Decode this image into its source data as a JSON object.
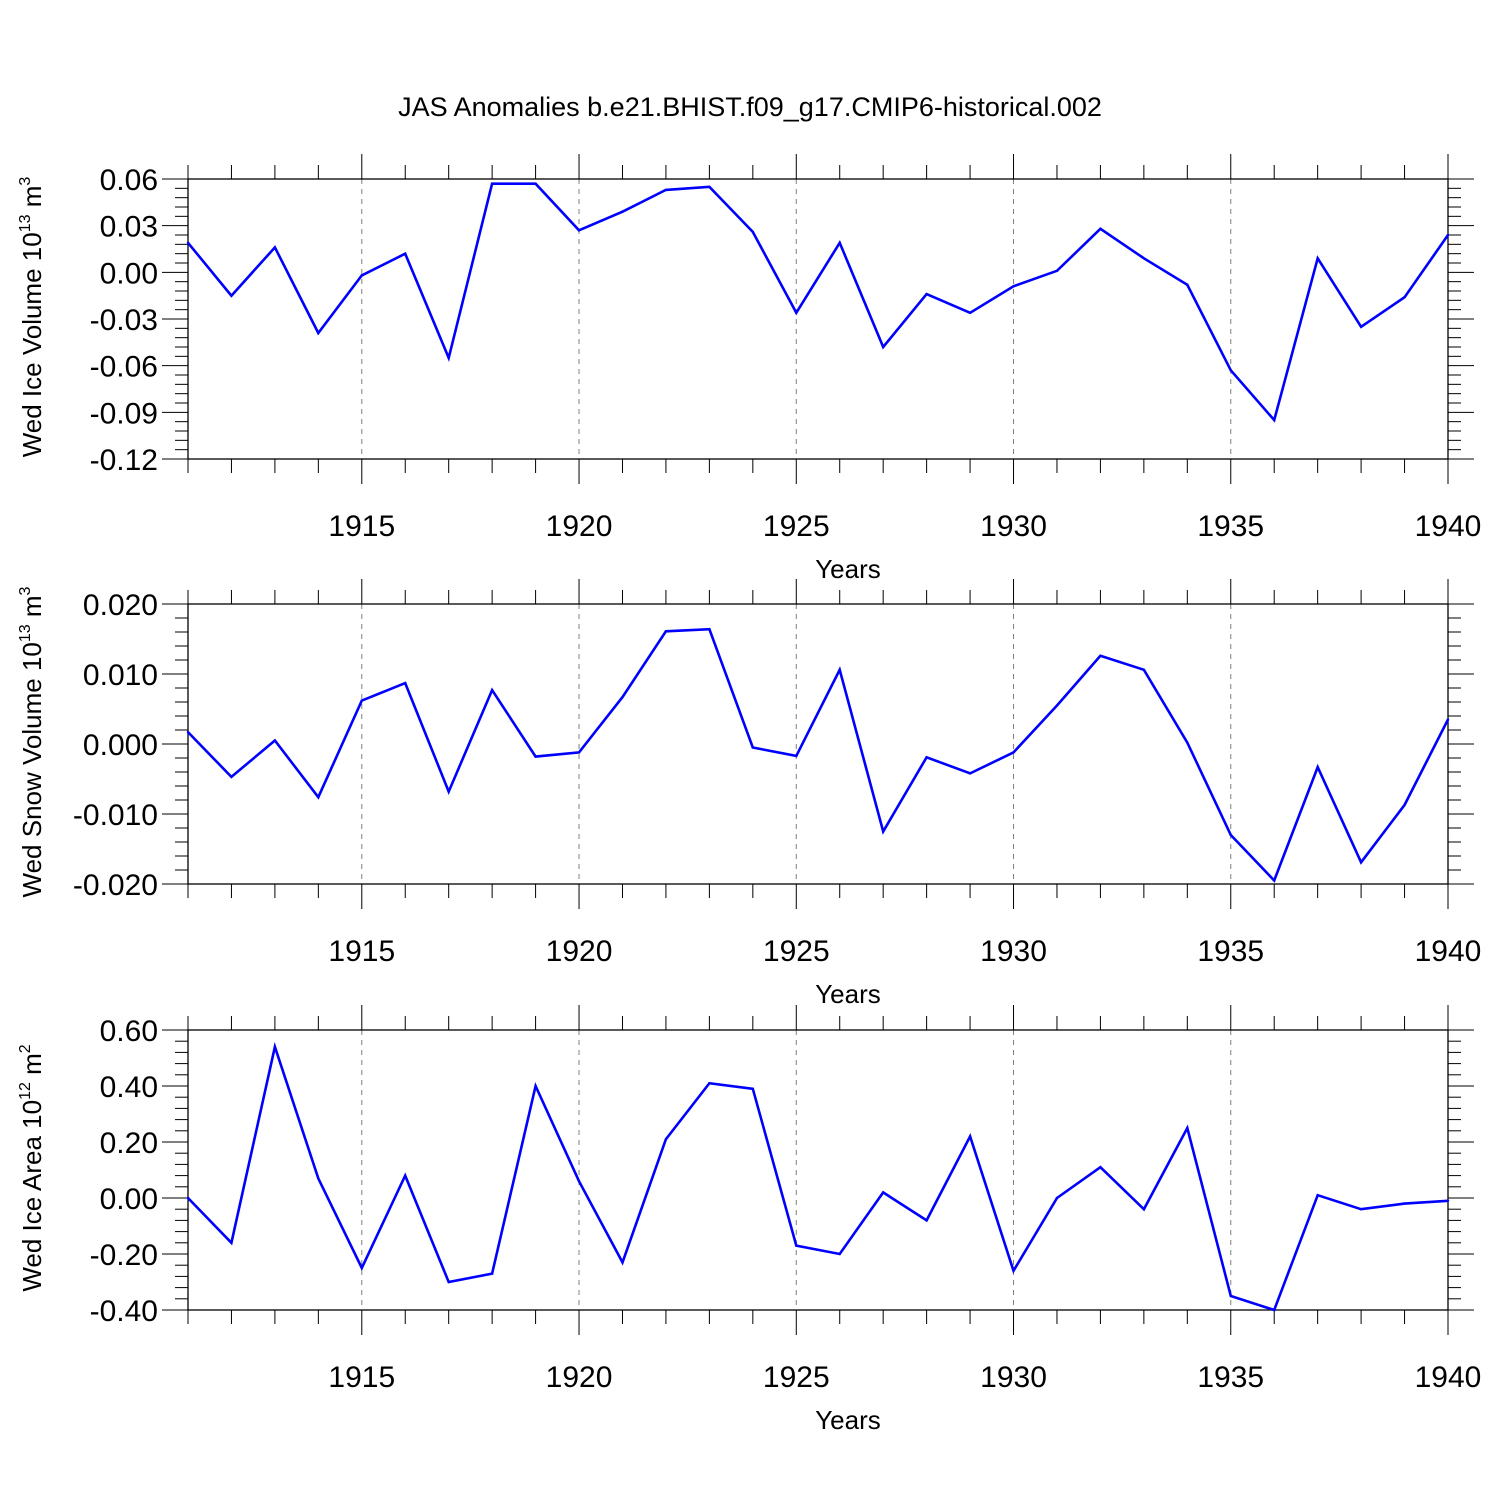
{
  "figure": {
    "title": "JAS Anomalies b.e21.BHIST.f09_g17.CMIP6-historical.002"
  },
  "colors": {
    "series_line": "#0000ff",
    "axis": "#000000",
    "grid": "#808080"
  },
  "chart_data": [
    {
      "type": "line",
      "ylabel_parts": [
        "Wed Ice Volume 10",
        "13",
        " m",
        "3"
      ],
      "xlabel": "Years",
      "x": [
        1911,
        1912,
        1913,
        1914,
        1915,
        1916,
        1917,
        1918,
        1919,
        1920,
        1921,
        1922,
        1923,
        1924,
        1925,
        1926,
        1927,
        1928,
        1929,
        1930,
        1931,
        1932,
        1933,
        1934,
        1935,
        1936,
        1937,
        1938,
        1939,
        1940
      ],
      "y": [
        0.019,
        -0.015,
        0.016,
        -0.039,
        -0.002,
        0.012,
        -0.055,
        0.057,
        0.057,
        0.027,
        0.039,
        0.053,
        0.055,
        0.026,
        -0.026,
        0.019,
        -0.048,
        -0.014,
        -0.026,
        -0.009,
        0.001,
        0.028,
        0.009,
        -0.008,
        -0.063,
        -0.095,
        0.009,
        -0.035,
        -0.016,
        0.024
      ],
      "xlim": [
        1911,
        1940
      ],
      "ylim": [
        -0.12,
        0.06
      ],
      "yticks": [
        0.06,
        0.03,
        0.0,
        -0.03,
        -0.06,
        -0.09,
        -0.12
      ],
      "ytick_labels": [
        "0.06",
        "0.03",
        "0.00",
        "-0.03",
        "-0.06",
        "-0.09",
        "-0.12"
      ],
      "xticks": [
        1915,
        1920,
        1925,
        1930,
        1935,
        1940
      ],
      "xtick_labels": [
        "1915",
        "1920",
        "1925",
        "1930",
        "1935",
        "1940"
      ],
      "grid": "vertical dashed at labeled years"
    },
    {
      "type": "line",
      "ylabel_parts": [
        "Wed Snow Volume 10",
        "13",
        " m",
        "3"
      ],
      "xlabel": "Years",
      "x": [
        1911,
        1912,
        1913,
        1914,
        1915,
        1916,
        1917,
        1918,
        1919,
        1920,
        1921,
        1922,
        1923,
        1924,
        1925,
        1926,
        1927,
        1928,
        1929,
        1930,
        1931,
        1932,
        1933,
        1934,
        1935,
        1936,
        1937,
        1938,
        1939,
        1940
      ],
      "y": [
        0.0017,
        -0.0047,
        0.0005,
        -0.0076,
        0.0062,
        0.0087,
        -0.0068,
        0.0077,
        -0.0018,
        -0.0012,
        0.0067,
        0.0161,
        0.0164,
        -0.0005,
        -0.0017,
        0.0106,
        -0.0125,
        -0.0019,
        -0.0042,
        -0.0012,
        0.0055,
        0.0126,
        0.0106,
        0.0002,
        -0.013,
        -0.0195,
        -0.0033,
        -0.0169,
        -0.0087,
        0.0035
      ],
      "xlim": [
        1911,
        1940
      ],
      "ylim": [
        -0.02,
        0.02
      ],
      "yticks": [
        0.02,
        0.01,
        0.0,
        -0.01,
        -0.02
      ],
      "ytick_labels": [
        "0.020",
        "0.010",
        "0.000",
        "-0.010",
        "-0.020"
      ],
      "xticks": [
        1915,
        1920,
        1925,
        1930,
        1935,
        1940
      ],
      "xtick_labels": [
        "1915",
        "1920",
        "1925",
        "1930",
        "1935",
        "1940"
      ],
      "grid": "vertical dashed at labeled years"
    },
    {
      "type": "line",
      "ylabel_parts": [
        "Wed Ice Area 10",
        "12",
        " m",
        "2"
      ],
      "xlabel": "Years",
      "x": [
        1911,
        1912,
        1913,
        1914,
        1915,
        1916,
        1917,
        1918,
        1919,
        1920,
        1921,
        1922,
        1923,
        1924,
        1925,
        1926,
        1927,
        1928,
        1929,
        1930,
        1931,
        1932,
        1933,
        1934,
        1935,
        1936,
        1937,
        1938,
        1939,
        1940
      ],
      "y": [
        0.0,
        -0.16,
        0.54,
        0.07,
        -0.25,
        0.08,
        -0.3,
        -0.27,
        0.4,
        0.06,
        -0.23,
        0.21,
        0.41,
        0.39,
        -0.17,
        -0.2,
        0.02,
        -0.08,
        0.22,
        -0.26,
        0.0,
        0.11,
        -0.04,
        0.25,
        -0.35,
        -0.4,
        0.01,
        -0.04,
        -0.02,
        -0.01
      ],
      "xlim": [
        1911,
        1940
      ],
      "ylim": [
        -0.4,
        0.6
      ],
      "yticks": [
        0.6,
        0.4,
        0.2,
        0.0,
        -0.2,
        -0.4
      ],
      "ytick_labels": [
        "0.60",
        "0.40",
        "0.20",
        "0.00",
        "-0.20",
        "-0.40"
      ],
      "xticks": [
        1915,
        1920,
        1925,
        1930,
        1935,
        1940
      ],
      "xtick_labels": [
        "1915",
        "1920",
        "1925",
        "1930",
        "1935",
        "1940"
      ],
      "grid": "vertical dashed at labeled years"
    }
  ]
}
